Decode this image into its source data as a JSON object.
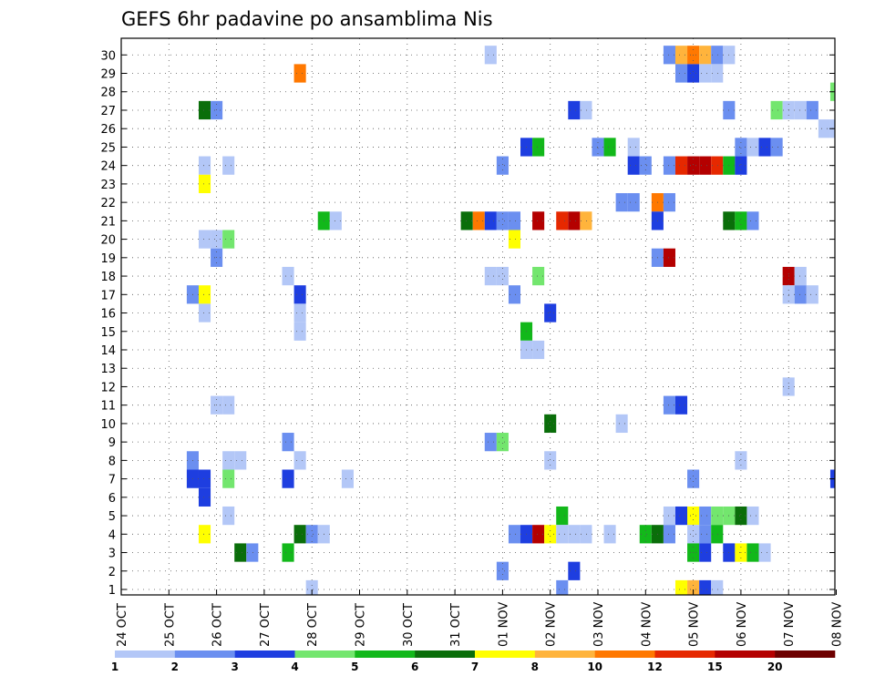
{
  "chart_data": {
    "type": "heatmap",
    "title": "GEFS 6hr padavine po ansamblima Nis",
    "x_tick_labels": [
      "24 OCT",
      "25 OCT",
      "26 OCT",
      "27 OCT",
      "28 OCT",
      "29 OCT",
      "30 OCT",
      "31 OCT",
      "01 NOV",
      "02 NOV",
      "03 NOV",
      "04 NOV",
      "05 NOV",
      "06 NOV",
      "07 NOV",
      "08 NOV"
    ],
    "y_tick_labels": [
      "1",
      "2",
      "3",
      "4",
      "5",
      "6",
      "7",
      "8",
      "9",
      "10",
      "11",
      "12",
      "13",
      "14",
      "15",
      "16",
      "17",
      "18",
      "19",
      "20",
      "21",
      "22",
      "23",
      "24",
      "25",
      "26",
      "27",
      "28",
      "29",
      "30"
    ],
    "x_unit": "day (24 OCT = 0)",
    "xlim": [
      0,
      15.125
    ],
    "ylim": [
      0,
      30
    ],
    "grid": true,
    "color_bins": [
      {
        "label": "1",
        "color": "#b3c7f7"
      },
      {
        "label": "2",
        "color": "#6b8ff0"
      },
      {
        "label": "3",
        "color": "#1e3ee0"
      },
      {
        "label": "4",
        "color": "#73e66e"
      },
      {
        "label": "5",
        "color": "#12b81a"
      },
      {
        "label": "6",
        "color": "#0a6e0a"
      },
      {
        "label": "7",
        "color": "#ffff00"
      },
      {
        "label": "8",
        "color": "#ffb43c"
      },
      {
        "label": "10",
        "color": "#ff7800"
      },
      {
        "label": "12",
        "color": "#e62800"
      },
      {
        "label": "15",
        "color": "#b40000"
      },
      {
        "label": "20",
        "color": "#6e0000"
      }
    ],
    "cells": [
      {
        "x": 7.75,
        "y": 30,
        "bin": 0
      },
      {
        "x": 11.5,
        "y": 30,
        "bin": 1
      },
      {
        "x": 11.75,
        "y": 30,
        "bin": 7
      },
      {
        "x": 12.0,
        "y": 30,
        "bin": 8
      },
      {
        "x": 12.25,
        "y": 30,
        "bin": 7
      },
      {
        "x": 12.5,
        "y": 30,
        "bin": 1
      },
      {
        "x": 12.75,
        "y": 30,
        "bin": 0
      },
      {
        "x": 3.75,
        "y": 29,
        "bin": 8
      },
      {
        "x": 11.75,
        "y": 29,
        "bin": 1
      },
      {
        "x": 12.0,
        "y": 29,
        "bin": 2
      },
      {
        "x": 12.25,
        "y": 29,
        "bin": 0
      },
      {
        "x": 12.5,
        "y": 29,
        "bin": 0
      },
      {
        "x": 15.0,
        "y": 28,
        "bin": 3
      },
      {
        "x": 15.125,
        "y": 28,
        "bin": 0
      },
      {
        "x": 1.75,
        "y": 27,
        "bin": 5
      },
      {
        "x": 2.0,
        "y": 27,
        "bin": 1
      },
      {
        "x": 9.5,
        "y": 27,
        "bin": 2
      },
      {
        "x": 9.75,
        "y": 27,
        "bin": 0
      },
      {
        "x": 12.75,
        "y": 27,
        "bin": 1
      },
      {
        "x": 13.75,
        "y": 27,
        "bin": 3
      },
      {
        "x": 14.0,
        "y": 27,
        "bin": 0
      },
      {
        "x": 14.25,
        "y": 27,
        "bin": 0
      },
      {
        "x": 14.5,
        "y": 27,
        "bin": 1
      },
      {
        "x": 14.75,
        "y": 26,
        "bin": 0
      },
      {
        "x": 15.0,
        "y": 26,
        "bin": 0
      },
      {
        "x": 8.5,
        "y": 25,
        "bin": 2
      },
      {
        "x": 8.75,
        "y": 25,
        "bin": 4
      },
      {
        "x": 10.0,
        "y": 25,
        "bin": 1
      },
      {
        "x": 10.25,
        "y": 25,
        "bin": 4
      },
      {
        "x": 10.75,
        "y": 25,
        "bin": 0
      },
      {
        "x": 13.0,
        "y": 25,
        "bin": 1
      },
      {
        "x": 13.25,
        "y": 25,
        "bin": 0
      },
      {
        "x": 13.5,
        "y": 25,
        "bin": 2
      },
      {
        "x": 13.75,
        "y": 25,
        "bin": 1
      },
      {
        "x": 1.75,
        "y": 24,
        "bin": 0
      },
      {
        "x": 2.25,
        "y": 24,
        "bin": 0
      },
      {
        "x": 8.0,
        "y": 24,
        "bin": 1
      },
      {
        "x": 10.75,
        "y": 24,
        "bin": 2
      },
      {
        "x": 11.0,
        "y": 24,
        "bin": 1
      },
      {
        "x": 11.5,
        "y": 24,
        "bin": 1
      },
      {
        "x": 11.75,
        "y": 24,
        "bin": 9
      },
      {
        "x": 12.0,
        "y": 24,
        "bin": 10
      },
      {
        "x": 12.25,
        "y": 24,
        "bin": 10
      },
      {
        "x": 12.5,
        "y": 24,
        "bin": 9
      },
      {
        "x": 12.75,
        "y": 24,
        "bin": 4
      },
      {
        "x": 13.0,
        "y": 24,
        "bin": 2
      },
      {
        "x": 1.75,
        "y": 23,
        "bin": 6
      },
      {
        "x": 15.125,
        "y": 23,
        "bin": 1
      },
      {
        "x": 10.5,
        "y": 22,
        "bin": 1
      },
      {
        "x": 10.75,
        "y": 22,
        "bin": 1
      },
      {
        "x": 11.25,
        "y": 22,
        "bin": 8
      },
      {
        "x": 11.5,
        "y": 22,
        "bin": 1
      },
      {
        "x": 4.25,
        "y": 21,
        "bin": 4
      },
      {
        "x": 4.5,
        "y": 21,
        "bin": 0
      },
      {
        "x": 7.25,
        "y": 21,
        "bin": 5
      },
      {
        "x": 7.5,
        "y": 21,
        "bin": 8
      },
      {
        "x": 7.75,
        "y": 21,
        "bin": 2
      },
      {
        "x": 8.0,
        "y": 21,
        "bin": 1
      },
      {
        "x": 8.25,
        "y": 21,
        "bin": 1
      },
      {
        "x": 8.75,
        "y": 21,
        "bin": 10
      },
      {
        "x": 9.25,
        "y": 21,
        "bin": 9
      },
      {
        "x": 9.5,
        "y": 21,
        "bin": 10
      },
      {
        "x": 9.75,
        "y": 21,
        "bin": 7
      },
      {
        "x": 11.25,
        "y": 21,
        "bin": 2
      },
      {
        "x": 12.75,
        "y": 21,
        "bin": 5
      },
      {
        "x": 13.0,
        "y": 21,
        "bin": 4
      },
      {
        "x": 13.25,
        "y": 21,
        "bin": 1
      },
      {
        "x": 1.75,
        "y": 20,
        "bin": 0
      },
      {
        "x": 2.0,
        "y": 20,
        "bin": 0
      },
      {
        "x": 2.25,
        "y": 20,
        "bin": 3
      },
      {
        "x": 8.25,
        "y": 20,
        "bin": 6
      },
      {
        "x": 2.0,
        "y": 19,
        "bin": 1
      },
      {
        "x": 11.25,
        "y": 19,
        "bin": 1
      },
      {
        "x": 11.5,
        "y": 19,
        "bin": 10
      },
      {
        "x": 3.5,
        "y": 18,
        "bin": 0
      },
      {
        "x": 7.75,
        "y": 18,
        "bin": 0
      },
      {
        "x": 8.0,
        "y": 18,
        "bin": 0
      },
      {
        "x": 8.75,
        "y": 18,
        "bin": 3
      },
      {
        "x": 14.0,
        "y": 18,
        "bin": 10
      },
      {
        "x": 14.25,
        "y": 18,
        "bin": 0
      },
      {
        "x": 1.5,
        "y": 17,
        "bin": 1
      },
      {
        "x": 1.75,
        "y": 17,
        "bin": 6
      },
      {
        "x": 3.75,
        "y": 17,
        "bin": 2
      },
      {
        "x": 8.25,
        "y": 17,
        "bin": 1
      },
      {
        "x": 14.0,
        "y": 17,
        "bin": 0
      },
      {
        "x": 14.25,
        "y": 17,
        "bin": 1
      },
      {
        "x": 14.5,
        "y": 17,
        "bin": 0
      },
      {
        "x": 1.75,
        "y": 16,
        "bin": 0
      },
      {
        "x": 3.75,
        "y": 16,
        "bin": 0
      },
      {
        "x": 9.0,
        "y": 16,
        "bin": 2
      },
      {
        "x": 15.125,
        "y": 16,
        "bin": 0
      },
      {
        "x": 3.75,
        "y": 15,
        "bin": 0
      },
      {
        "x": 8.5,
        "y": 15,
        "bin": 4
      },
      {
        "x": 8.5,
        "y": 14,
        "bin": 0
      },
      {
        "x": 8.75,
        "y": 14,
        "bin": 0
      },
      {
        "x": 14.0,
        "y": 12,
        "bin": 0
      },
      {
        "x": 2.0,
        "y": 11,
        "bin": 0
      },
      {
        "x": 2.25,
        "y": 11,
        "bin": 0
      },
      {
        "x": 11.5,
        "y": 11,
        "bin": 1
      },
      {
        "x": 11.75,
        "y": 11,
        "bin": 2
      },
      {
        "x": 9.0,
        "y": 10,
        "bin": 5
      },
      {
        "x": 10.5,
        "y": 10,
        "bin": 0
      },
      {
        "x": 3.5,
        "y": 9,
        "bin": 1
      },
      {
        "x": 7.75,
        "y": 9,
        "bin": 1
      },
      {
        "x": 8.0,
        "y": 9,
        "bin": 3
      },
      {
        "x": 1.5,
        "y": 8,
        "bin": 1
      },
      {
        "x": 2.25,
        "y": 8,
        "bin": 0
      },
      {
        "x": 2.5,
        "y": 8,
        "bin": 0
      },
      {
        "x": 3.75,
        "y": 8,
        "bin": 0
      },
      {
        "x": 9.0,
        "y": 8,
        "bin": 0
      },
      {
        "x": 13.0,
        "y": 8,
        "bin": 0
      },
      {
        "x": 1.5,
        "y": 7,
        "bin": 2
      },
      {
        "x": 1.75,
        "y": 7,
        "bin": 2
      },
      {
        "x": 2.25,
        "y": 7,
        "bin": 3
      },
      {
        "x": 3.5,
        "y": 7,
        "bin": 2
      },
      {
        "x": 4.75,
        "y": 7,
        "bin": 0
      },
      {
        "x": 12.0,
        "y": 7,
        "bin": 1
      },
      {
        "x": 15.0,
        "y": 7,
        "bin": 2
      },
      {
        "x": 15.125,
        "y": 7,
        "bin": 7
      },
      {
        "x": 1.75,
        "y": 6,
        "bin": 2
      },
      {
        "x": 2.25,
        "y": 5,
        "bin": 0
      },
      {
        "x": 9.25,
        "y": 5,
        "bin": 4
      },
      {
        "x": 11.5,
        "y": 5,
        "bin": 0
      },
      {
        "x": 11.75,
        "y": 5,
        "bin": 2
      },
      {
        "x": 12.0,
        "y": 5,
        "bin": 6
      },
      {
        "x": 12.25,
        "y": 5,
        "bin": 1
      },
      {
        "x": 12.5,
        "y": 5,
        "bin": 3
      },
      {
        "x": 12.75,
        "y": 5,
        "bin": 3
      },
      {
        "x": 13.0,
        "y": 5,
        "bin": 5
      },
      {
        "x": 13.25,
        "y": 5,
        "bin": 0
      },
      {
        "x": 1.75,
        "y": 4,
        "bin": 6
      },
      {
        "x": 3.75,
        "y": 4,
        "bin": 5
      },
      {
        "x": 4.0,
        "y": 4,
        "bin": 1
      },
      {
        "x": 4.25,
        "y": 4,
        "bin": 0
      },
      {
        "x": 8.25,
        "y": 4,
        "bin": 1
      },
      {
        "x": 8.5,
        "y": 4,
        "bin": 2
      },
      {
        "x": 8.75,
        "y": 4,
        "bin": 10
      },
      {
        "x": 9.0,
        "y": 4,
        "bin": 6
      },
      {
        "x": 9.25,
        "y": 4,
        "bin": 0
      },
      {
        "x": 9.5,
        "y": 4,
        "bin": 0
      },
      {
        "x": 9.75,
        "y": 4,
        "bin": 0
      },
      {
        "x": 10.25,
        "y": 4,
        "bin": 0
      },
      {
        "x": 11.0,
        "y": 4,
        "bin": 4
      },
      {
        "x": 11.25,
        "y": 4,
        "bin": 5
      },
      {
        "x": 11.5,
        "y": 4,
        "bin": 1
      },
      {
        "x": 12.0,
        "y": 4,
        "bin": 0
      },
      {
        "x": 12.25,
        "y": 4,
        "bin": 1
      },
      {
        "x": 12.5,
        "y": 4,
        "bin": 4
      },
      {
        "x": 2.5,
        "y": 3,
        "bin": 5
      },
      {
        "x": 2.75,
        "y": 3,
        "bin": 1
      },
      {
        "x": 3.5,
        "y": 3,
        "bin": 4
      },
      {
        "x": 12.0,
        "y": 3,
        "bin": 4
      },
      {
        "x": 12.25,
        "y": 3,
        "bin": 2
      },
      {
        "x": 12.75,
        "y": 3,
        "bin": 2
      },
      {
        "x": 13.0,
        "y": 3,
        "bin": 6
      },
      {
        "x": 13.25,
        "y": 3,
        "bin": 4
      },
      {
        "x": 13.5,
        "y": 3,
        "bin": 0
      },
      {
        "x": 8.0,
        "y": 2,
        "bin": 1
      },
      {
        "x": 9.5,
        "y": 2,
        "bin": 2
      },
      {
        "x": 4.0,
        "y": 1,
        "bin": 0
      },
      {
        "x": 9.25,
        "y": 1,
        "bin": 1
      },
      {
        "x": 11.75,
        "y": 1,
        "bin": 6
      },
      {
        "x": 12.0,
        "y": 1,
        "bin": 7
      },
      {
        "x": 12.25,
        "y": 1,
        "bin": 2
      },
      {
        "x": 12.5,
        "y": 1,
        "bin": 0
      },
      {
        "x": 1.5,
        "y": 0,
        "bin": 1
      },
      {
        "x": 2.0,
        "y": 0,
        "bin": 4
      },
      {
        "x": 2.25,
        "y": 0,
        "bin": 1
      },
      {
        "x": 11.75,
        "y": 0,
        "bin": 0
      }
    ]
  }
}
